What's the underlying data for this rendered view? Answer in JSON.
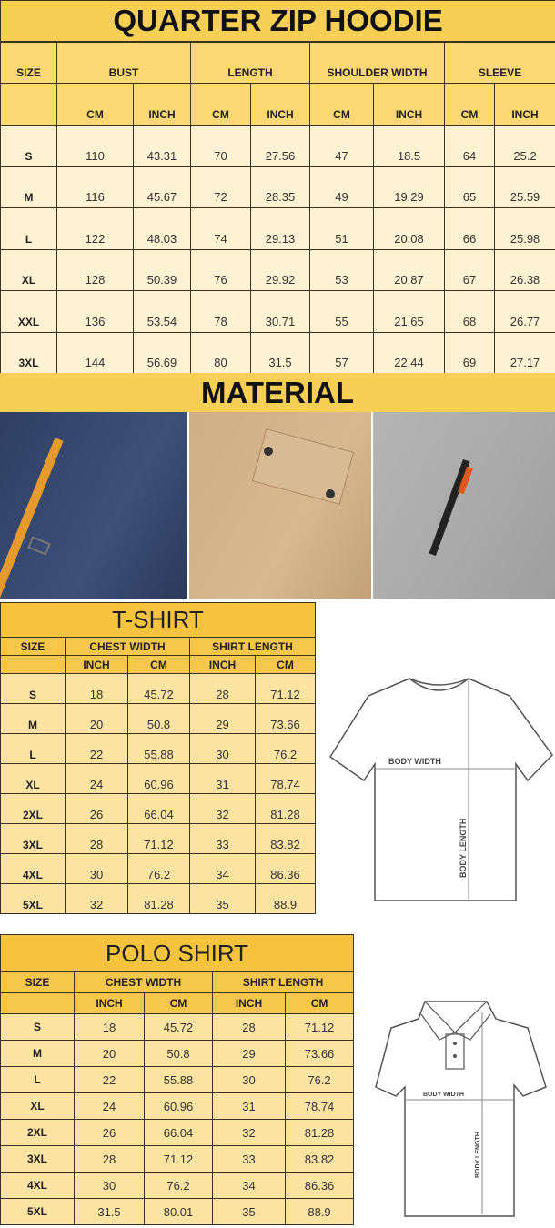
{
  "hoodie": {
    "title": "QUARTER ZIP HOODIE",
    "size_label": "SIZE",
    "groups": [
      "BUST",
      "LENGTH",
      "SHOULDER WIDTH",
      "SLEEVE"
    ],
    "units": [
      "CM",
      "INCH",
      "CM",
      "INCH",
      "CM",
      "INCH",
      "CM",
      "INCH"
    ],
    "rows": [
      [
        "S",
        "110",
        "43.31",
        "70",
        "27.56",
        "47",
        "18.5",
        "64",
        "25.2"
      ],
      [
        "M",
        "116",
        "45.67",
        "72",
        "28.35",
        "49",
        "19.29",
        "65",
        "25.59"
      ],
      [
        "L",
        "122",
        "48.03",
        "74",
        "29.13",
        "51",
        "20.08",
        "66",
        "25.98"
      ],
      [
        "XL",
        "128",
        "50.39",
        "76",
        "29.92",
        "53",
        "20.87",
        "67",
        "26.38"
      ],
      [
        "XXL",
        "136",
        "53.54",
        "78",
        "30.71",
        "55",
        "21.65",
        "68",
        "26.77"
      ],
      [
        "3XL",
        "144",
        "56.69",
        "80",
        "31.5",
        "57",
        "22.44",
        "69",
        "27.17"
      ]
    ]
  },
  "material": {
    "title": "MATERIAL",
    "photos": [
      "navy-fabric-pocket-strap",
      "khaki-fabric-flap-pocket",
      "grey-fabric-zip-pocket"
    ]
  },
  "tshirt": {
    "title": "T-SHIRT",
    "size_label": "SIZE",
    "groups": [
      "CHEST WIDTH",
      "SHIRT LENGTH"
    ],
    "units": [
      "INCH",
      "CM",
      "INCH",
      "CM"
    ],
    "rows": [
      [
        "S",
        "18",
        "45.72",
        "28",
        "71.12"
      ],
      [
        "M",
        "20",
        "50.8",
        "29",
        "73.66"
      ],
      [
        "L",
        "22",
        "55.88",
        "30",
        "76.2"
      ],
      [
        "XL",
        "24",
        "60.96",
        "31",
        "78.74"
      ],
      [
        "2XL",
        "26",
        "66.04",
        "32",
        "81.28"
      ],
      [
        "3XL",
        "28",
        "71.12",
        "33",
        "83.82"
      ],
      [
        "4XL",
        "30",
        "76.2",
        "34",
        "86.36"
      ],
      [
        "5XL",
        "32",
        "81.28",
        "35",
        "88.9"
      ]
    ],
    "diagram": {
      "body_width": "BODY WIDTH",
      "body_length": "BODY LENGTH"
    }
  },
  "polo": {
    "title": "POLO SHIRT",
    "size_label": "SIZE",
    "groups": [
      "CHEST WIDTH",
      "SHIRT LENGTH"
    ],
    "units": [
      "INCH",
      "CM",
      "INCH",
      "CM"
    ],
    "rows": [
      [
        "S",
        "18",
        "45.72",
        "28",
        "71.12"
      ],
      [
        "M",
        "20",
        "50.8",
        "29",
        "73.66"
      ],
      [
        "L",
        "22",
        "55.88",
        "30",
        "76.2"
      ],
      [
        "XL",
        "24",
        "60.96",
        "31",
        "78.74"
      ],
      [
        "2XL",
        "26",
        "66.04",
        "32",
        "81.28"
      ],
      [
        "3XL",
        "28",
        "71.12",
        "33",
        "83.82"
      ],
      [
        "4XL",
        "30",
        "76.2",
        "34",
        "86.36"
      ],
      [
        "5XL",
        "31.5",
        "80.01",
        "35",
        "88.9"
      ]
    ],
    "diagram": {
      "body_width": "BODY WIDTH",
      "body_length": "BODY LENGTH"
    }
  }
}
